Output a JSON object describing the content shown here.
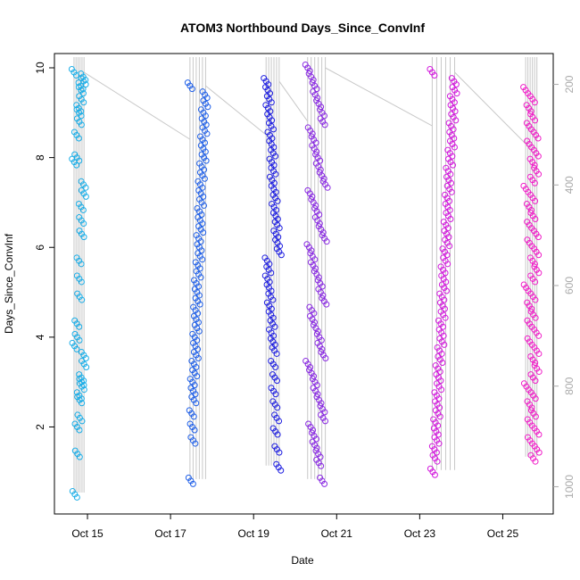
{
  "chart_data": {
    "type": "scatter",
    "title": "ATOM3 Northbound Days_Since_ConvInf",
    "xlabel": "Date",
    "ylabel": "Days_Since_ConvInf",
    "x_ticks": [
      "Oct 15",
      "Oct 17",
      "Oct 19",
      "Oct 21",
      "Oct 23",
      "Oct 25"
    ],
    "y_ticks": [
      "2",
      "4",
      "6",
      "8",
      "10"
    ],
    "y2_ticks": [
      "200",
      "400",
      "600",
      "800",
      "1000"
    ],
    "xlim": [
      "2025-10-14 08:00",
      "2025-10-26 00:00"
    ],
    "ylim": [
      0.3,
      10.0
    ],
    "y2lim": [
      1040,
      160
    ],
    "grid": false,
    "legend": "none",
    "marker": "open circle",
    "line_color": "#c8c8c8",
    "series": [
      {
        "date": "2025-10-14",
        "color": "#1aaee8",
        "time_range": [
          "Oct 14 17:00",
          "Oct 14 22:00"
        ],
        "y_values": [
          9.9,
          9.8,
          9.7,
          9.6,
          9.5,
          9.3,
          9.1,
          9.0,
          8.8,
          8.5,
          8.0,
          7.9,
          7.4,
          7.2,
          6.9,
          6.6,
          6.3,
          5.7,
          5.3,
          4.9,
          4.3,
          4.0,
          3.8,
          3.6,
          3.4,
          3.1,
          3.0,
          2.9,
          2.7,
          2.6,
          2.2,
          2.0,
          1.4,
          0.5
        ]
      },
      {
        "date": "2025-10-17",
        "color": "#1f5fe8",
        "time_range": [
          "Oct 17 12:00",
          "Oct 17 20:00"
        ],
        "y_values": [
          9.6,
          9.4,
          9.2,
          9.0,
          8.8,
          8.6,
          8.4,
          8.2,
          8.0,
          7.8,
          7.6,
          7.4,
          7.2,
          7.0,
          6.8,
          6.6,
          6.4,
          6.2,
          6.0,
          5.8,
          5.6,
          5.4,
          5.2,
          5.0,
          4.8,
          4.6,
          4.4,
          4.2,
          4.0,
          3.8,
          3.6,
          3.4,
          3.2,
          3.0,
          2.8,
          2.6,
          2.3,
          2.0,
          1.7,
          0.8
        ]
      },
      {
        "date": "2025-10-19",
        "color": "#2020e0",
        "time_range": [
          "Oct 19 08:00",
          "Oct 19 14:00"
        ],
        "y_values": [
          9.7,
          9.5,
          9.3,
          9.1,
          8.9,
          8.7,
          8.5,
          8.3,
          8.1,
          7.9,
          7.7,
          7.5,
          7.3,
          7.1,
          6.9,
          6.7,
          6.5,
          6.3,
          6.1,
          5.9,
          5.7,
          5.5,
          5.3,
          5.1,
          4.9,
          4.7,
          4.5,
          4.3,
          4.1,
          3.9,
          3.7,
          3.4,
          3.1,
          2.8,
          2.5,
          2.2,
          1.9,
          1.5,
          1.1
        ]
      },
      {
        "date": "2025-10-20",
        "color": "#8a2be2",
        "time_range": [
          "Oct 20 08:00",
          "Oct 20 17:00"
        ],
        "y_values": [
          10.0,
          9.8,
          9.6,
          9.4,
          9.2,
          9.0,
          8.8,
          8.6,
          8.4,
          8.2,
          8.0,
          7.8,
          7.6,
          7.4,
          7.2,
          7.0,
          6.8,
          6.6,
          6.4,
          6.2,
          6.0,
          5.8,
          5.6,
          5.4,
          5.2,
          5.0,
          4.8,
          4.6,
          4.4,
          4.2,
          4.0,
          3.8,
          3.6,
          3.4,
          3.2,
          3.0,
          2.8,
          2.6,
          2.4,
          2.2,
          2.0,
          1.8,
          1.6,
          1.4,
          1.2,
          0.8
        ]
      },
      {
        "date": "2025-10-23",
        "color": "#d21adc",
        "time_range": [
          "Oct 23 08:00",
          "Oct 23 20:00"
        ],
        "y_values": [
          9.9,
          9.7,
          9.5,
          9.3,
          9.1,
          8.9,
          8.7,
          8.5,
          8.3,
          8.1,
          7.9,
          7.7,
          7.5,
          7.3,
          7.1,
          6.9,
          6.7,
          6.5,
          6.3,
          6.1,
          5.9,
          5.7,
          5.5,
          5.3,
          5.1,
          4.9,
          4.7,
          4.5,
          4.3,
          4.1,
          3.9,
          3.7,
          3.5,
          3.3,
          3.1,
          2.9,
          2.7,
          2.5,
          2.3,
          2.1,
          1.9,
          1.7,
          1.5,
          1.3,
          1.0
        ]
      },
      {
        "date": "2025-10-25",
        "color": "#f01ec8",
        "time_range": [
          "Oct 25 14:00",
          "Oct 25 20:00"
        ],
        "y_values": [
          9.5,
          9.3,
          9.1,
          8.9,
          8.7,
          8.5,
          8.3,
          8.1,
          7.9,
          7.7,
          7.5,
          7.3,
          7.1,
          6.9,
          6.7,
          6.5,
          6.3,
          6.1,
          5.9,
          5.7,
          5.5,
          5.3,
          5.1,
          4.9,
          4.7,
          4.5,
          4.3,
          4.1,
          3.9,
          3.7,
          3.5,
          3.3,
          3.1,
          2.9,
          2.7,
          2.5,
          2.3,
          2.1,
          1.9,
          1.7,
          1.5,
          1.3
        ]
      }
    ]
  }
}
